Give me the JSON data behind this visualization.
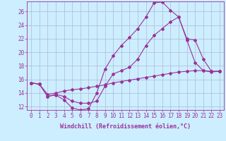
{
  "title": "",
  "xlabel": "Windchill (Refroidissement éolien,°C)",
  "ylabel": "",
  "bg_color": "#cceeff",
  "line_color": "#993399",
  "grid_color": "#aaaacc",
  "xlim": [
    -0.5,
    23.5
  ],
  "ylim": [
    11.5,
    27.5
  ],
  "xticks": [
    0,
    1,
    2,
    3,
    4,
    5,
    6,
    7,
    8,
    9,
    10,
    11,
    12,
    13,
    14,
    15,
    16,
    17,
    18,
    19,
    20,
    21,
    22,
    23
  ],
  "yticks": [
    12,
    14,
    16,
    18,
    20,
    22,
    24,
    26
  ],
  "lines": [
    {
      "x": [
        0,
        1,
        2,
        3,
        4,
        5,
        6,
        7,
        8,
        9,
        10,
        11,
        12,
        13,
        14,
        15,
        16,
        17,
        18,
        19,
        20,
        21,
        22,
        23
      ],
      "y": [
        15.5,
        15.3,
        13.5,
        13.7,
        13.0,
        11.8,
        11.5,
        11.7,
        14.0,
        17.5,
        19.5,
        21.0,
        22.2,
        23.5,
        25.2,
        27.3,
        27.4,
        26.2,
        25.2,
        21.8,
        18.5,
        17.3,
        17.1,
        17.2
      ]
    },
    {
      "x": [
        0,
        1,
        2,
        3,
        4,
        5,
        6,
        7,
        8,
        9,
        10,
        11,
        12,
        13,
        14,
        15,
        16,
        17,
        18,
        19,
        20,
        21,
        22,
        23
      ],
      "y": [
        15.5,
        15.3,
        13.5,
        13.8,
        13.5,
        12.8,
        12.5,
        12.5,
        12.8,
        15.0,
        16.8,
        17.3,
        17.8,
        19.0,
        21.0,
        22.5,
        23.5,
        24.5,
        25.2,
        22.0,
        21.8,
        19.0,
        17.2,
        17.2
      ]
    },
    {
      "x": [
        0,
        1,
        2,
        3,
        4,
        5,
        6,
        7,
        8,
        9,
        10,
        11,
        12,
        13,
        14,
        15,
        16,
        17,
        18,
        19,
        20,
        21,
        22,
        23
      ],
      "y": [
        15.5,
        15.3,
        13.8,
        14.0,
        14.3,
        14.5,
        14.6,
        14.8,
        15.0,
        15.2,
        15.5,
        15.7,
        15.9,
        16.1,
        16.3,
        16.5,
        16.7,
        16.9,
        17.1,
        17.2,
        17.3,
        17.3,
        17.2,
        17.2
      ]
    }
  ],
  "xlabel_fontsize": 6,
  "tick_fontsize": 5.5,
  "marker": "D",
  "markersize": 2.0,
  "linewidth": 0.8
}
